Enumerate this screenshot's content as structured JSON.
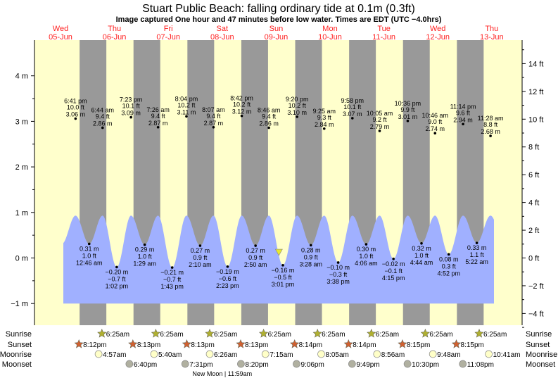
{
  "title": "Stuart Public Beach: falling  ordinary tide at 0.1m (0.3ft)",
  "subtitle": "Image captured One hour and 47 minutes before low water. Times are EDT (UTC −4.0hrs)",
  "colors": {
    "day_bg": "#ffffcc",
    "night_bg": "#999999",
    "water": "#a0b0ff",
    "day_label": "#ff2020",
    "sunrise": "#b0b030",
    "sunset": "#d06030",
    "moonrise": "#ffffc8",
    "moonset": "#b0b0a0",
    "marker": "#e8e830"
  },
  "days": [
    {
      "name": "Wed",
      "date": "05-Jun"
    },
    {
      "name": "Thu",
      "date": "06-Jun"
    },
    {
      "name": "Fri",
      "date": "07-Jun"
    },
    {
      "name": "Sat",
      "date": "08-Jun"
    },
    {
      "name": "Sun",
      "date": "09-Jun"
    },
    {
      "name": "Mon",
      "date": "10-Jun"
    },
    {
      "name": "Tue",
      "date": "11-Jun"
    },
    {
      "name": "Wed",
      "date": "12-Jun"
    },
    {
      "name": "Thu",
      "date": "13-Jun"
    }
  ],
  "chart_data": {
    "type": "area",
    "title": "Stuart Public Beach: falling  ordinary tide at 0.1m (0.3ft)",
    "left_axis": {
      "unit": "m",
      "ticks": [
        "4 m",
        "3 m",
        "2 m",
        "1 m",
        "0 m",
        "−1 m"
      ],
      "values": [
        4,
        3,
        2,
        1,
        0,
        -1
      ],
      "range": [
        -1.45,
        4.8
      ]
    },
    "right_axis": {
      "unit": "ft",
      "ticks": [
        "14 ft",
        "12 ft",
        "10 ft",
        "8 ft",
        "6 ft",
        "4 ft",
        "2 ft",
        "0 ft",
        "−2 ft",
        "−4 ft"
      ],
      "values": [
        14,
        12,
        10,
        8,
        6,
        4,
        2,
        0,
        -2,
        -4
      ]
    },
    "current": {
      "date": "09-Jun",
      "time": "1:14 pm",
      "state": "falling",
      "height_m": 0.1,
      "height_ft": 0.3
    },
    "extremes": [
      {
        "type": "high",
        "date": "05-Jun",
        "time": "6:41 pm",
        "ft": "10.0 ft",
        "m": "3.06 m",
        "value": 3.06
      },
      {
        "type": "low",
        "date": "06-Jun",
        "time": "12:46 am",
        "ft": "1.0 ft",
        "m": "0.31 m",
        "value": 0.31
      },
      {
        "type": "high",
        "date": "06-Jun",
        "time": "6:44 am",
        "ft": "9.4 ft",
        "m": "2.86 m",
        "value": 2.86
      },
      {
        "type": "low",
        "date": "06-Jun",
        "time": "1:02 pm",
        "ft": "−0.7 ft",
        "m": "−0.20 m",
        "value": -0.2
      },
      {
        "type": "high",
        "date": "06-Jun",
        "time": "7:23 pm",
        "ft": "10.1 ft",
        "m": "3.09 m",
        "value": 3.09
      },
      {
        "type": "low",
        "date": "07-Jun",
        "time": "1:29 am",
        "ft": "1.0 ft",
        "m": "0.29 m",
        "value": 0.29
      },
      {
        "type": "high",
        "date": "07-Jun",
        "time": "7:26 am",
        "ft": "9.4 ft",
        "m": "2.87 m",
        "value": 2.87
      },
      {
        "type": "low",
        "date": "07-Jun",
        "time": "1:43 pm",
        "ft": "−0.7 ft",
        "m": "−0.21 m",
        "value": -0.21
      },
      {
        "type": "high",
        "date": "07-Jun",
        "time": "8:04 pm",
        "ft": "10.2 ft",
        "m": "3.11 m",
        "value": 3.11
      },
      {
        "type": "low",
        "date": "08-Jun",
        "time": "2:10 am",
        "ft": "0.9 ft",
        "m": "0.27 m",
        "value": 0.27
      },
      {
        "type": "high",
        "date": "08-Jun",
        "time": "8:07 am",
        "ft": "9.4 ft",
        "m": "2.87 m",
        "value": 2.87
      },
      {
        "type": "low",
        "date": "08-Jun",
        "time": "2:23 pm",
        "ft": "−0.6 ft",
        "m": "−0.19 m",
        "value": -0.19
      },
      {
        "type": "high",
        "date": "08-Jun",
        "time": "8:42 pm",
        "ft": "10.2 ft",
        "m": "3.12 m",
        "value": 3.12
      },
      {
        "type": "low",
        "date": "09-Jun",
        "time": "2:50 am",
        "ft": "0.9 ft",
        "m": "0.27 m",
        "value": 0.27
      },
      {
        "type": "high",
        "date": "09-Jun",
        "time": "8:46 am",
        "ft": "9.4 ft",
        "m": "2.86 m",
        "value": 2.86
      },
      {
        "type": "low",
        "date": "09-Jun",
        "time": "3:01 pm",
        "ft": "−0.5 ft",
        "m": "−0.16 m",
        "value": -0.16
      },
      {
        "type": "high",
        "date": "09-Jun",
        "time": "9:20 pm",
        "ft": "10.2 ft",
        "m": "3.10 m",
        "value": 3.1
      },
      {
        "type": "low",
        "date": "10-Jun",
        "time": "3:28 am",
        "ft": "0.9 ft",
        "m": "0.28 m",
        "value": 0.28
      },
      {
        "type": "high",
        "date": "10-Jun",
        "time": "9:25 am",
        "ft": "9.3 ft",
        "m": "2.84 m",
        "value": 2.84
      },
      {
        "type": "low",
        "date": "10-Jun",
        "time": "3:38 pm",
        "ft": "−0.3 ft",
        "m": "−0.10 m",
        "value": -0.1
      },
      {
        "type": "high",
        "date": "10-Jun",
        "time": "9:58 pm",
        "ft": "10.1 ft",
        "m": "3.07 m",
        "value": 3.07
      },
      {
        "type": "low",
        "date": "11-Jun",
        "time": "4:06 am",
        "ft": "1.0 ft",
        "m": "0.30 m",
        "value": 0.3
      },
      {
        "type": "high",
        "date": "11-Jun",
        "time": "10:05 am",
        "ft": "9.2 ft",
        "m": "2.79 m",
        "value": 2.79
      },
      {
        "type": "low",
        "date": "11-Jun",
        "time": "4:15 pm",
        "ft": "−0.1 ft",
        "m": "−0.02 m",
        "value": -0.02
      },
      {
        "type": "high",
        "date": "11-Jun",
        "time": "10:36 pm",
        "ft": "9.9 ft",
        "m": "3.01 m",
        "value": 3.01
      },
      {
        "type": "low",
        "date": "12-Jun",
        "time": "4:44 am",
        "ft": "1.0 ft",
        "m": "0.32 m",
        "value": 0.32
      },
      {
        "type": "high",
        "date": "12-Jun",
        "time": "10:46 am",
        "ft": "9.0 ft",
        "m": "2.74 m",
        "value": 2.74
      },
      {
        "type": "low",
        "date": "12-Jun",
        "time": "4:52 pm",
        "ft": "0.3 ft",
        "m": "0.08 m",
        "value": 0.08
      },
      {
        "type": "high",
        "date": "12-Jun",
        "time": "11:14 pm",
        "ft": "9.6 ft",
        "m": "2.94 m",
        "value": 2.94
      },
      {
        "type": "low",
        "date": "13-Jun",
        "time": "5:22 am",
        "ft": "1.1 ft",
        "m": "0.33 m",
        "value": 0.33
      },
      {
        "type": "high",
        "date": "13-Jun",
        "time": "11:28 am",
        "ft": "8.8 ft",
        "m": "2.68 m",
        "value": 2.68
      }
    ]
  },
  "almanac": {
    "labels": {
      "sunrise": "Sunrise",
      "sunset": "Sunset",
      "moonrise": "Moonrise",
      "moonset": "Moonset"
    },
    "sunrise": [
      {
        "date": "06-Jun",
        "time": "6:25am"
      },
      {
        "date": "07-Jun",
        "time": "6:25am"
      },
      {
        "date": "08-Jun",
        "time": "6:25am"
      },
      {
        "date": "09-Jun",
        "time": "6:25am"
      },
      {
        "date": "10-Jun",
        "time": "6:25am"
      },
      {
        "date": "11-Jun",
        "time": "6:25am"
      },
      {
        "date": "12-Jun",
        "time": "6:25am"
      },
      {
        "date": "13-Jun",
        "time": "6:25am"
      }
    ],
    "sunset": [
      {
        "date": "05-Jun",
        "time": "8:12pm"
      },
      {
        "date": "06-Jun",
        "time": "8:13pm"
      },
      {
        "date": "07-Jun",
        "time": "8:13pm"
      },
      {
        "date": "08-Jun",
        "time": "8:13pm"
      },
      {
        "date": "09-Jun",
        "time": "8:14pm"
      },
      {
        "date": "10-Jun",
        "time": "8:14pm"
      },
      {
        "date": "11-Jun",
        "time": "8:15pm"
      },
      {
        "date": "12-Jun",
        "time": "8:15pm"
      }
    ],
    "moonrise": [
      {
        "date": "06-Jun",
        "time": "4:57am"
      },
      {
        "date": "07-Jun",
        "time": "5:40am"
      },
      {
        "date": "08-Jun",
        "time": "6:26am"
      },
      {
        "date": "09-Jun",
        "time": "7:15am"
      },
      {
        "date": "10-Jun",
        "time": "8:05am"
      },
      {
        "date": "11-Jun",
        "time": "8:56am"
      },
      {
        "date": "12-Jun",
        "time": "9:48am"
      },
      {
        "date": "13-Jun",
        "time": "10:41am"
      }
    ],
    "moonset": [
      {
        "date": "06-Jun",
        "time": "6:40pm"
      },
      {
        "date": "07-Jun",
        "time": "7:31pm"
      },
      {
        "date": "08-Jun",
        "time": "8:20pm"
      },
      {
        "date": "09-Jun",
        "time": "9:06pm"
      },
      {
        "date": "10-Jun",
        "time": "9:49pm"
      },
      {
        "date": "11-Jun",
        "time": "10:30pm"
      },
      {
        "date": "12-Jun",
        "time": "11:08pm"
      }
    ],
    "moon_phase": {
      "date": "08-Jun",
      "time": "11:59am",
      "label": "New Moon | 11:59am"
    }
  }
}
